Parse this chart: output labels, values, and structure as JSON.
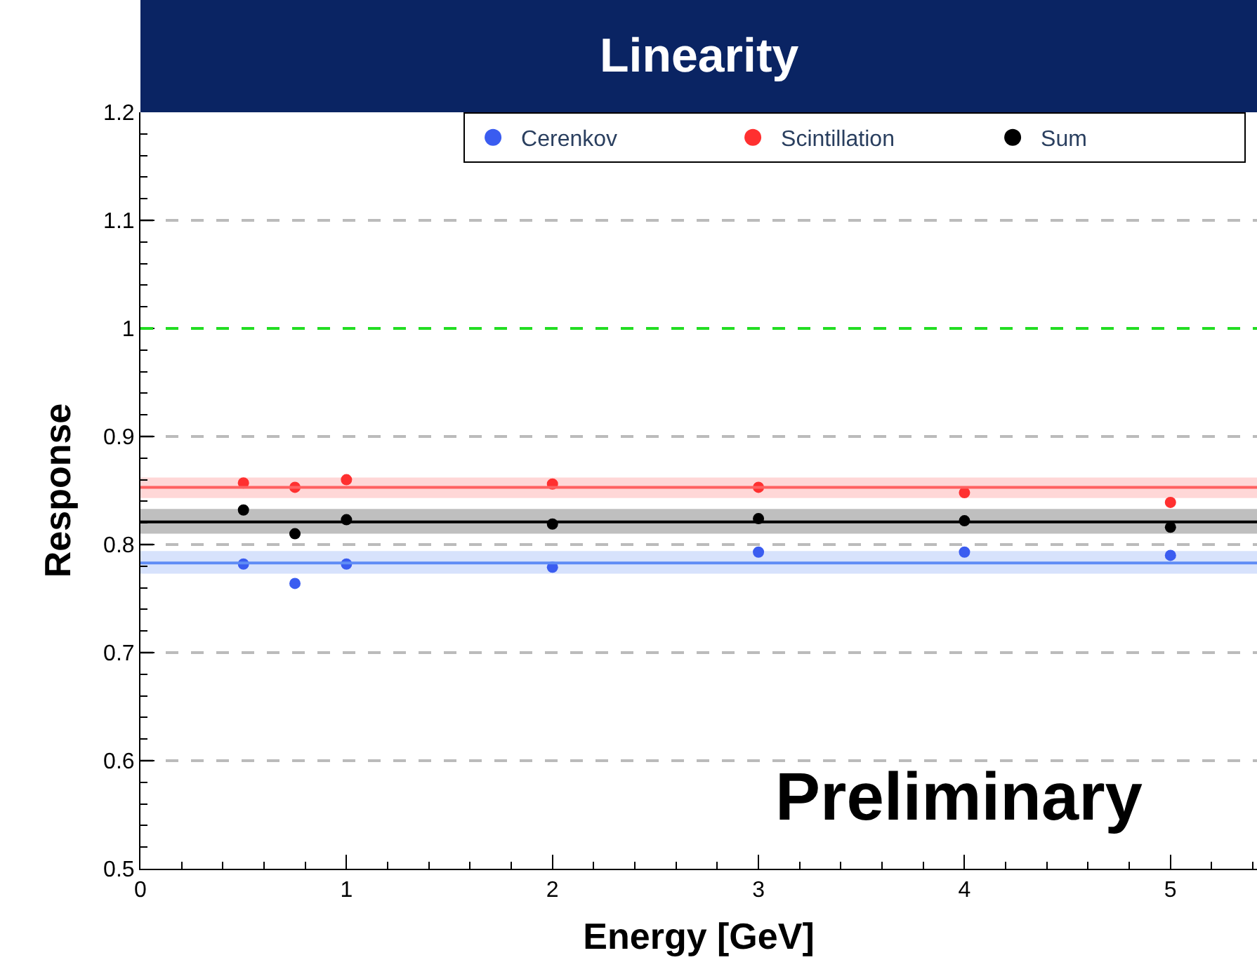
{
  "chart_data": {
    "type": "scatter",
    "title": "Linearity",
    "xlabel": "Energy [GeV]",
    "ylabel": "Response",
    "x": [
      0.5,
      0.75,
      1,
      2,
      3,
      4,
      5
    ],
    "series": [
      {
        "name": "Cerenkov",
        "color": "#3a5cf0",
        "marker": "circle",
        "values": [
          0.782,
          0.764,
          0.782,
          0.779,
          0.793,
          0.793,
          0.79
        ]
      },
      {
        "name": "Scintillation",
        "color": "#ff3030",
        "marker": "circle",
        "values": [
          0.857,
          0.853,
          0.86,
          0.856,
          0.853,
          0.848,
          0.839
        ]
      },
      {
        "name": "Sum",
        "color": "#000000",
        "marker": "circle",
        "values": [
          0.832,
          0.81,
          0.823,
          0.819,
          0.824,
          0.822,
          0.816
        ]
      }
    ],
    "ref_lines": [
      {
        "axis": "y",
        "value": 1,
        "color": "#22dd22",
        "line_style": "dashed"
      },
      {
        "axis": "y",
        "value": 0.783,
        "color": "#5f8cf5",
        "line_style": "solid"
      },
      {
        "axis": "y",
        "value": 0.853,
        "color": "#ff6060",
        "line_style": "solid"
      },
      {
        "axis": "y",
        "value": 0.821,
        "color": "#000000",
        "line_style": "solid"
      }
    ],
    "bands": [
      {
        "axis": "y",
        "from": 0.773,
        "to": 0.794,
        "color": "#5f8cf5"
      },
      {
        "axis": "y",
        "from": 0.843,
        "to": 0.862,
        "color": "#ff6060"
      },
      {
        "axis": "y",
        "from": 0.81,
        "to": 0.833,
        "color": "#000000"
      }
    ],
    "annotations": [
      "Preliminary"
    ],
    "xlim": [
      0,
      5.42
    ],
    "xticks": [
      0,
      1,
      2,
      3,
      4,
      5
    ],
    "ylim": [
      0.5,
      1.2
    ],
    "yticks": [
      0.5,
      0.6,
      0.7,
      0.8,
      0.9,
      1,
      1.1,
      1.2
    ],
    "grid": "y",
    "legend": "top right"
  }
}
